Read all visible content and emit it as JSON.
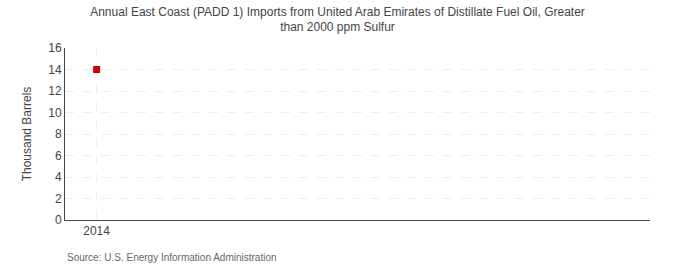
{
  "chart_data": {
    "type": "scatter",
    "title": "Annual East Coast (PADD 1) Imports from United Arab Emirates of Distillate Fuel Oil, Greater\nthan 2000 ppm Sulfur",
    "ylabel": "Thousand Barrels",
    "annotations": [
      "Source: U.S. Energy Information Administration"
    ],
    "x": [
      2014
    ],
    "values": [
      14
    ],
    "color": "#cc0000",
    "marker": "square",
    "xlim": [
      2013.6,
      2021.0
    ],
    "xticks": [
      2014
    ],
    "ylim": [
      0,
      16
    ],
    "yticks": [
      0,
      2,
      4,
      6,
      8,
      10,
      12,
      14,
      16
    ],
    "grid": true
  }
}
